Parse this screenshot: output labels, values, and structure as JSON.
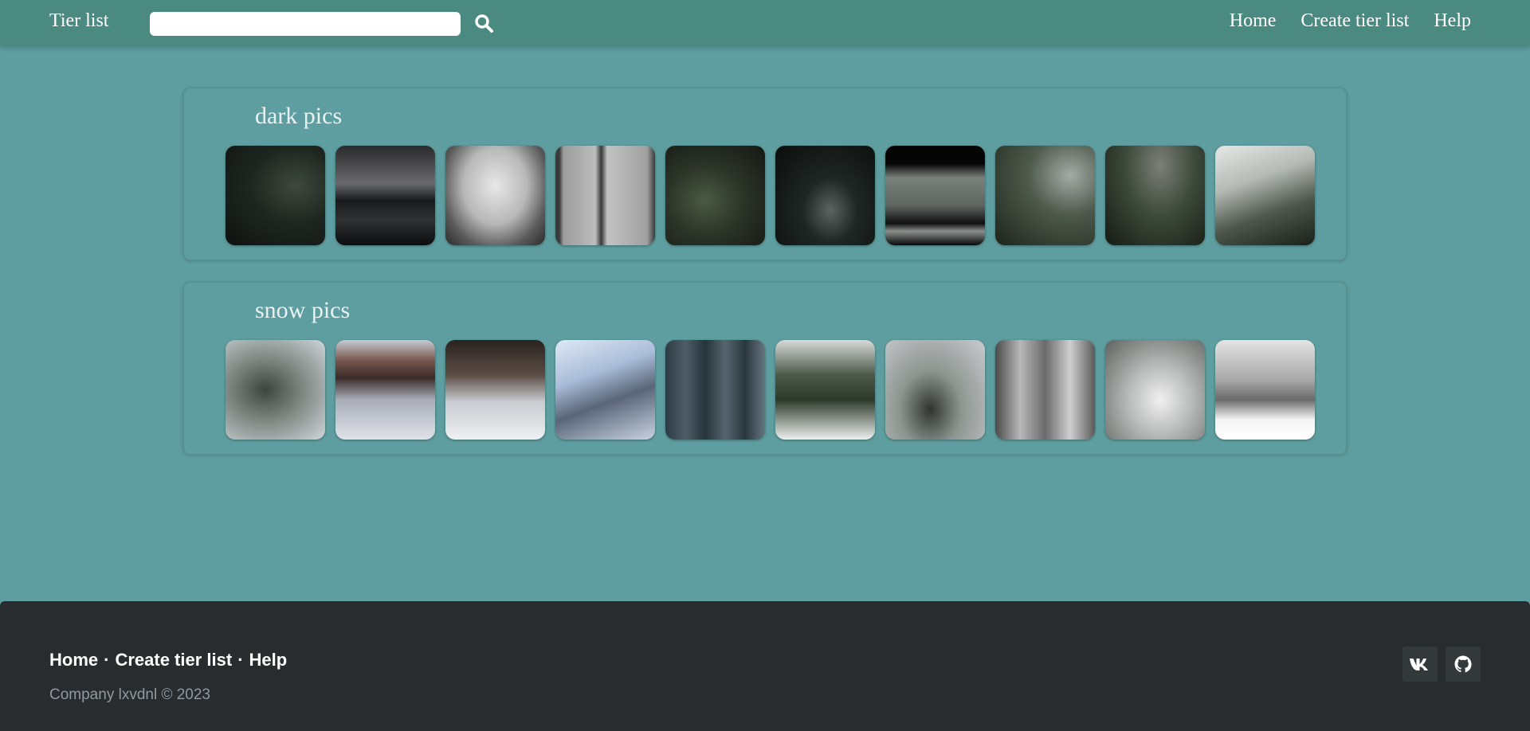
{
  "header": {
    "brand": "Tier list",
    "search": {
      "value": "",
      "placeholder": ""
    },
    "nav": [
      {
        "label": "Home"
      },
      {
        "label": "Create tier list"
      },
      {
        "label": "Help"
      }
    ]
  },
  "tiers": [
    {
      "title": "dark pics",
      "pictures": [
        "dark mossy rocks in forest",
        "dark lake between mountains",
        "bare trees in fog",
        "misty window corner",
        "dark green forest path",
        "dark forest with stream",
        "dark room with window view",
        "foggy mossy forest path",
        "misty mountain valley",
        "foggy forest hillside"
      ]
    },
    {
      "title": "snow pics",
      "pictures": [
        "snowy pine trees",
        "snowy temple roof with lantern",
        "snowy courtyard house",
        "snow covered building",
        "snowy dark forest",
        "snowy pine forest",
        "misty snowy stream",
        "snowy forest boardwalk",
        "snowy fir trees",
        "snowy riverbank"
      ]
    }
  ],
  "footer": {
    "links": [
      {
        "label": "Home"
      },
      {
        "label": "Create tier list"
      },
      {
        "label": "Help"
      }
    ],
    "separator": "·",
    "copyright": "Company lxvdnl © 2023",
    "social": [
      "vk-icon",
      "github-icon"
    ]
  }
}
